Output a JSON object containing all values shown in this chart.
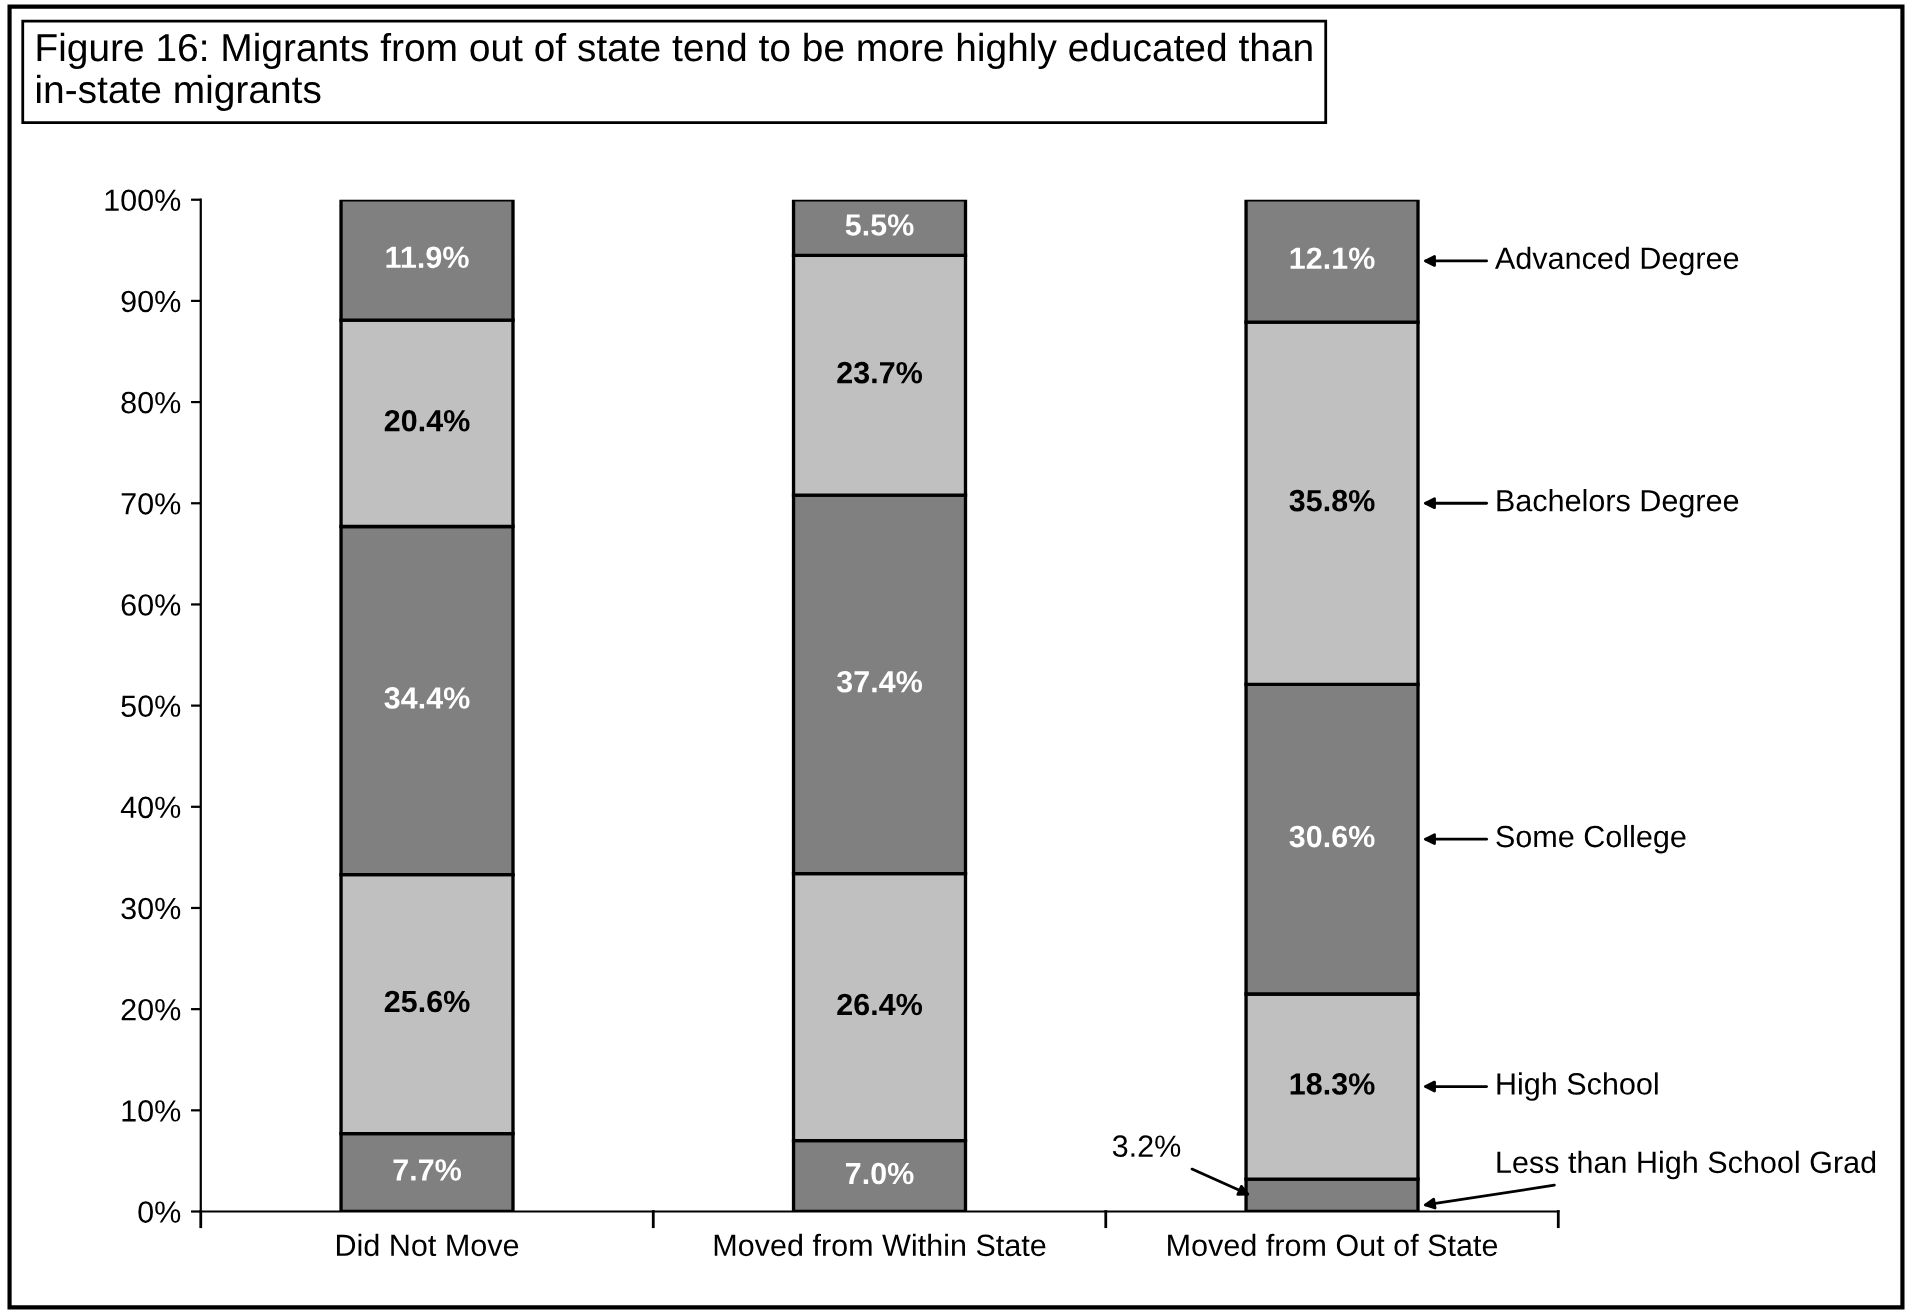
{
  "chart_data": {
    "type": "bar",
    "stacked": true,
    "title": "Figure 16: Migrants from out of state tend to be more highly educated than in-state migrants",
    "categories": [
      "Did Not Move",
      "Moved from Within State",
      "Moved from Out of State"
    ],
    "series": [
      {
        "name": "Less than High School Grad",
        "color": "#808080",
        "values": [
          7.7,
          7.0,
          3.2
        ],
        "value_labels": [
          "7.7%",
          "7.0%",
          "3.2%"
        ]
      },
      {
        "name": "High School",
        "color": "#c0c0c0",
        "values": [
          25.6,
          26.4,
          18.3
        ],
        "value_labels": [
          "25.6%",
          "26.4%",
          "18.3%"
        ]
      },
      {
        "name": "Some College",
        "color": "#808080",
        "values": [
          34.4,
          37.4,
          30.6
        ],
        "value_labels": [
          "34.4%",
          "37.4%",
          "30.6%"
        ]
      },
      {
        "name": "Bachelors Degree",
        "color": "#c0c0c0",
        "values": [
          20.4,
          23.7,
          35.8
        ],
        "value_labels": [
          "20.4%",
          "23.7%",
          "35.8%"
        ]
      },
      {
        "name": "Advanced Degree",
        "color": "#808080",
        "values": [
          11.9,
          5.5,
          12.1
        ],
        "value_labels": [
          "11.9%",
          "5.5%",
          "12.1%"
        ]
      }
    ],
    "ylim": [
      0,
      100
    ],
    "yticks": [
      {
        "value": 0,
        "label": "0%"
      },
      {
        "value": 10,
        "label": "10%"
      },
      {
        "value": 20,
        "label": "20%"
      },
      {
        "value": 30,
        "label": "30%"
      },
      {
        "value": 40,
        "label": "40%"
      },
      {
        "value": 50,
        "label": "50%"
      },
      {
        "value": 60,
        "label": "60%"
      },
      {
        "value": 70,
        "label": "70%"
      },
      {
        "value": 80,
        "label": "80%"
      },
      {
        "value": 90,
        "label": "90%"
      },
      {
        "value": 100,
        "label": "100%"
      }
    ],
    "grid": false,
    "legend": "right"
  }
}
